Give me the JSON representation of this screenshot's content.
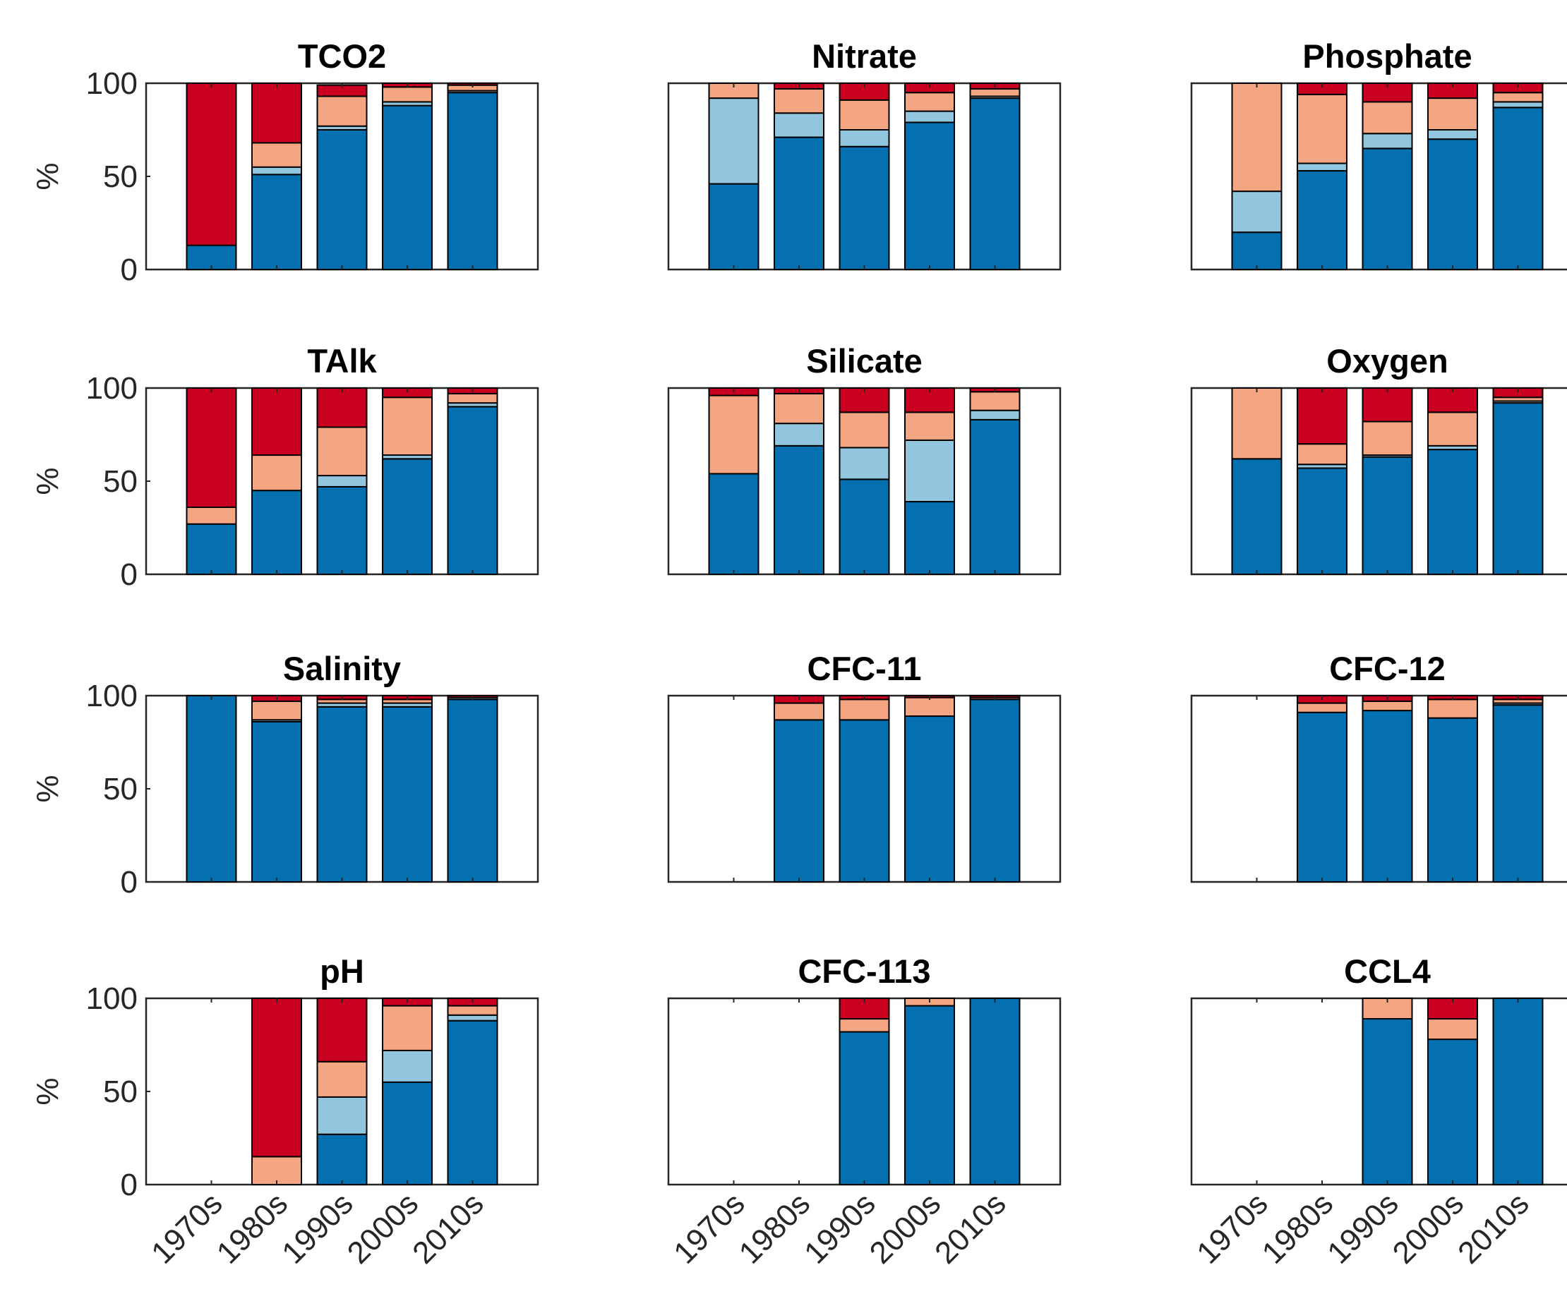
{
  "chart_data": {
    "type": "bar",
    "stacked": true,
    "grid": false,
    "legend": "none",
    "categories": [
      "1970s",
      "1980s",
      "1990s",
      "2000s",
      "2010s"
    ],
    "ylabel": "%",
    "ylim": [
      0,
      100
    ],
    "yticks": [
      0,
      50,
      100
    ],
    "segment_colors": [
      "#0570b0",
      "#92c5de",
      "#f4a582",
      "#ca0020"
    ],
    "panels": [
      {
        "title": "TCO2",
        "data": [
          [
            13,
            0,
            0,
            87
          ],
          [
            51,
            4,
            13,
            32
          ],
          [
            75,
            2,
            16,
            6
          ],
          [
            88,
            2,
            8,
            2
          ],
          [
            95,
            1,
            3,
            1
          ]
        ]
      },
      {
        "title": "Nitrate",
        "data": [
          [
            46,
            46,
            8,
            0
          ],
          [
            71,
            13,
            13,
            3
          ],
          [
            66,
            9,
            16,
            9
          ],
          [
            79,
            6,
            10,
            5
          ],
          [
            92,
            1,
            4,
            3
          ]
        ]
      },
      {
        "title": "Phosphate",
        "data": [
          [
            20,
            22,
            58,
            0
          ],
          [
            53,
            4,
            37,
            6
          ],
          [
            65,
            8,
            17,
            10
          ],
          [
            70,
            5,
            17,
            8
          ],
          [
            87,
            3,
            5,
            5
          ]
        ]
      },
      {
        "title": "TAlk",
        "data": [
          [
            27,
            0,
            9,
            64
          ],
          [
            45,
            0,
            19,
            36
          ],
          [
            47,
            6,
            26,
            21
          ],
          [
            62,
            2,
            31,
            5
          ],
          [
            90,
            2,
            5,
            3
          ]
        ]
      },
      {
        "title": "Silicate",
        "data": [
          [
            54,
            0,
            42,
            4
          ],
          [
            69,
            12,
            16,
            3
          ],
          [
            51,
            17,
            19,
            13
          ],
          [
            39,
            33,
            15,
            13
          ],
          [
            83,
            5,
            10,
            2
          ]
        ]
      },
      {
        "title": "Oxygen",
        "data": [
          [
            62,
            0,
            38,
            0
          ],
          [
            57,
            2,
            11,
            30
          ],
          [
            63,
            1,
            18,
            18
          ],
          [
            67,
            2,
            18,
            13
          ],
          [
            92,
            1,
            2,
            5
          ]
        ]
      },
      {
        "title": "Salinity",
        "data": [
          [
            100,
            0,
            0,
            0
          ],
          [
            86,
            1,
            10,
            3
          ],
          [
            94,
            2,
            2,
            2
          ],
          [
            94,
            2,
            2,
            2
          ],
          [
            98,
            1,
            0,
            1
          ]
        ]
      },
      {
        "title": "CFC-11",
        "data": [
          [
            0,
            0,
            0,
            0
          ],
          [
            87,
            0,
            9,
            4
          ],
          [
            87,
            0,
            11,
            2
          ],
          [
            89,
            0,
            10,
            1
          ],
          [
            98,
            0,
            1,
            1
          ]
        ]
      },
      {
        "title": "CFC-12",
        "data": [
          [
            0,
            0,
            0,
            0
          ],
          [
            91,
            0,
            5,
            4
          ],
          [
            92,
            0,
            5,
            3
          ],
          [
            88,
            0,
            10,
            2
          ],
          [
            95,
            1,
            2,
            2
          ]
        ]
      },
      {
        "title": "pH",
        "data": [
          [
            0,
            0,
            0,
            0
          ],
          [
            0,
            0,
            15,
            85
          ],
          [
            27,
            20,
            19,
            34
          ],
          [
            55,
            17,
            24,
            4
          ],
          [
            88,
            3,
            5,
            4
          ]
        ]
      },
      {
        "title": "CFC-113",
        "data": [
          [
            0,
            0,
            0,
            0
          ],
          [
            0,
            0,
            0,
            0
          ],
          [
            82,
            0,
            7,
            11
          ],
          [
            96,
            0,
            4,
            0
          ],
          [
            100,
            0,
            0,
            0
          ]
        ]
      },
      {
        "title": "CCL4",
        "data": [
          [
            0,
            0,
            0,
            0
          ],
          [
            0,
            0,
            0,
            0
          ],
          [
            89,
            0,
            11,
            0
          ],
          [
            78,
            0,
            11,
            11
          ],
          [
            100,
            0,
            0,
            0
          ]
        ]
      }
    ]
  }
}
